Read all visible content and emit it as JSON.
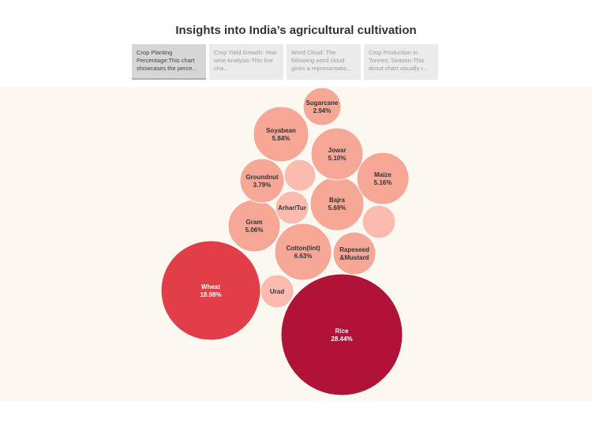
{
  "page": {
    "title": "Insights into India’s agricultural cultivation"
  },
  "tabs": [
    {
      "label": "Crop Planting Percentage:This chart showcases the perce...",
      "active": true
    },
    {
      "label": "Crop Yield Growth: Year wise Analysis-This line cha...",
      "active": false
    },
    {
      "label": "Word Cloud:  The following word cloud gives a represantatio...",
      "active": false
    },
    {
      "label": "Crop Production in Tonnes: Season-This donut chart visually r...",
      "active": false
    }
  ],
  "chart_data": {
    "type": "packed-bubble",
    "title": "",
    "value_unit": "%",
    "colors": {
      "high": "#b01238",
      "mid": "#e23e47",
      "low": "#f7a796",
      "lowest": "#fbbcaf"
    },
    "bubbles": [
      {
        "label": "Rice",
        "value": 28.44,
        "value_label": "28.44%"
      },
      {
        "label": "Wheat",
        "value": 18.98,
        "value_label": "18.98%"
      },
      {
        "label": "Cotton(lint)",
        "value": 6.63,
        "value_label": "6.63%"
      },
      {
        "label": "Soyabean",
        "value": 5.84,
        "value_label": "5.84%"
      },
      {
        "label": "Bajra",
        "value": 5.69,
        "value_label": "5.69%"
      },
      {
        "label": "Maize",
        "value": 5.16,
        "value_label": "5.16%"
      },
      {
        "label": "Jowar",
        "value": 5.1,
        "value_label": "5.10%"
      },
      {
        "label": "Gram",
        "value": 5.06,
        "value_label": "5.06%"
      },
      {
        "label": "Rapeseed &Mustard",
        "value": 4.2,
        "value_label": ""
      },
      {
        "label": "Groundnut",
        "value": 3.79,
        "value_label": "3.79%"
      },
      {
        "label": "Sugarcane",
        "value": 2.94,
        "value_label": "2.94%"
      },
      {
        "label": "Arhar/Tur",
        "value": 2.0,
        "value_label": ""
      },
      {
        "label": "Urad",
        "value": 1.9,
        "value_label": ""
      },
      {
        "label": "",
        "value": 1.85,
        "value_label": ""
      },
      {
        "label": "",
        "value": 1.85,
        "value_label": ""
      }
    ]
  }
}
